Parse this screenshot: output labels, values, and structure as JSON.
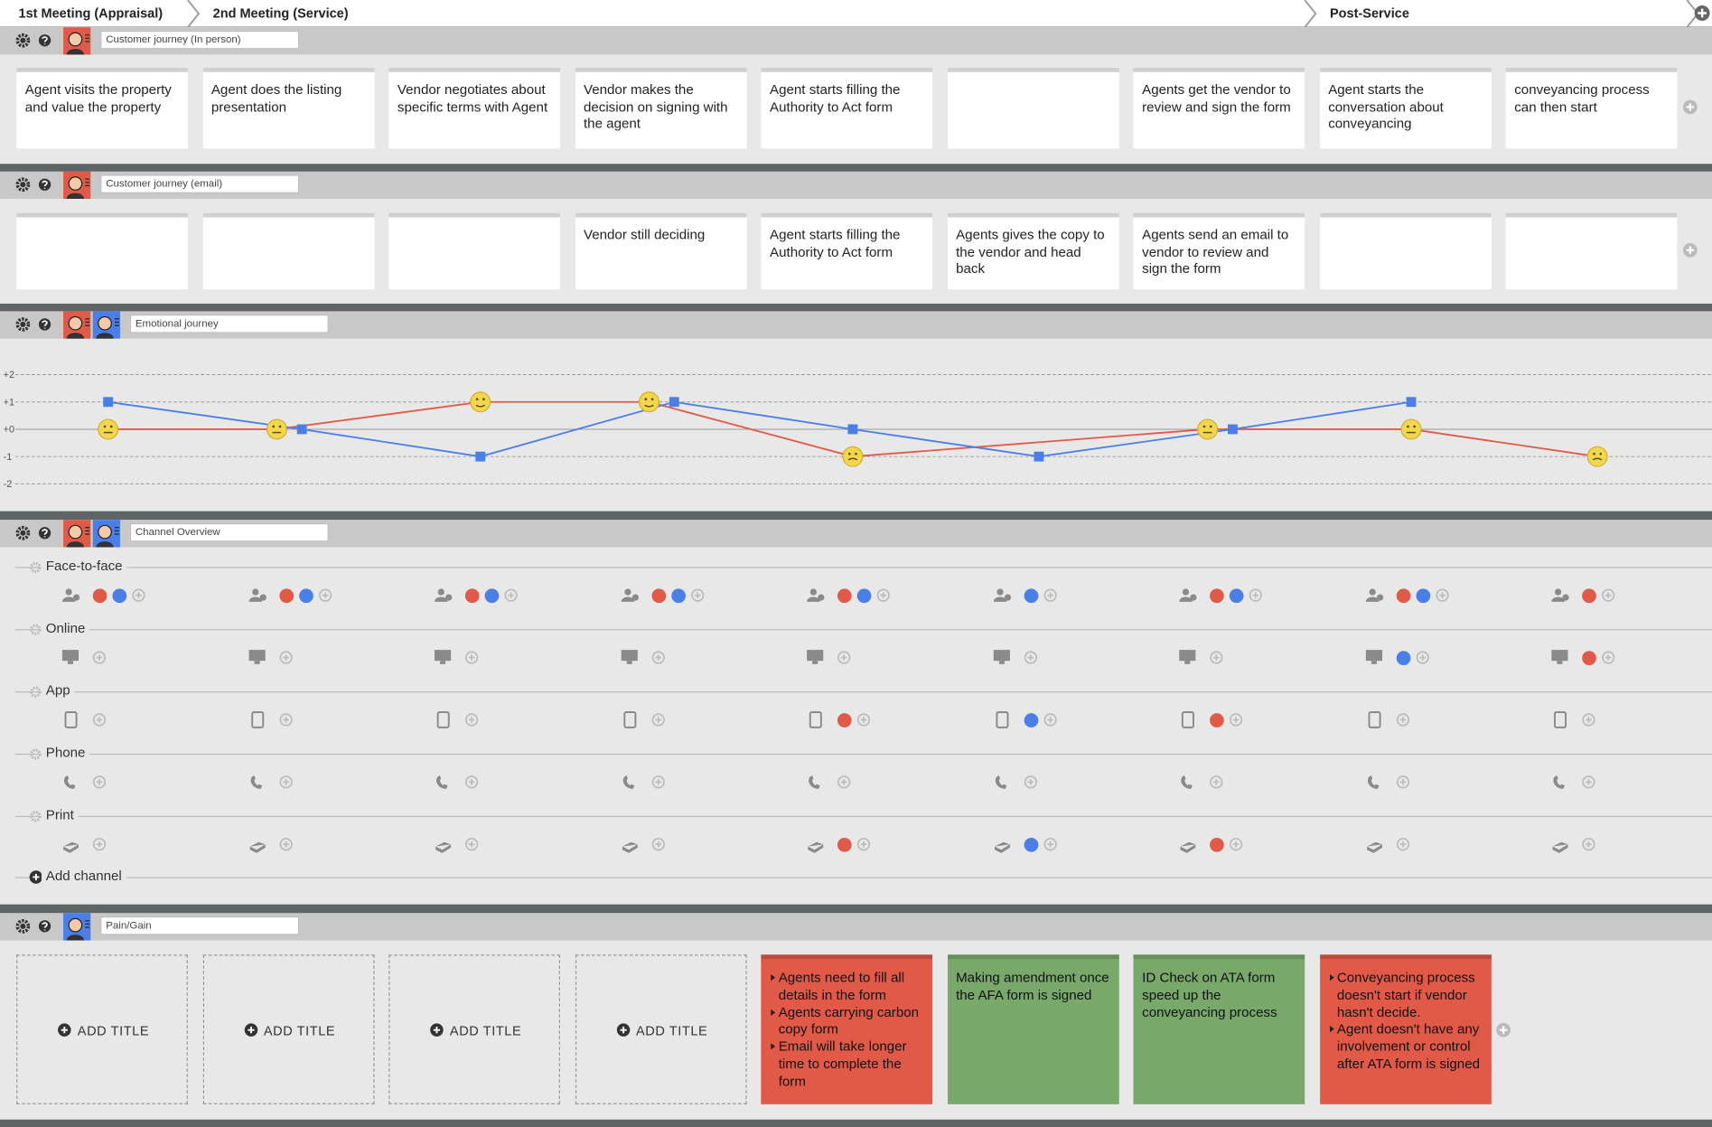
{
  "stages": [
    "1st Meeting (Appraisal)",
    "2nd Meeting (Service)",
    "Post-Service"
  ],
  "persona_colors": [
    "#e05a47",
    "#4a7fe8"
  ],
  "journey_in_person": {
    "title": "Customer journey (In person)",
    "personas": [
      0
    ],
    "cards": [
      "Agent visits the property and value the property",
      "Agent does the listing presentation",
      "Vendor negotiates about specific terms with Agent",
      "Vendor makes the decision on signing with the agent",
      "Agent starts filling the Authority to Act form",
      null,
      "Agents get the vendor to review and sign the form",
      "Agent starts the conversation about conveyancing",
      "conveyancing process can then start"
    ]
  },
  "journey_email": {
    "title": "Customer journey (email)",
    "personas": [
      0
    ],
    "cards": [
      null,
      null,
      null,
      "Vendor still deciding",
      "Agent starts filling the Authority to Act form",
      "Agents gives the copy to the vendor and head back",
      "Agents send an email to vendor to review and sign the form",
      null,
      null
    ]
  },
  "emotional_journey": {
    "title": "Emotional journey",
    "personas": [
      0,
      1
    ],
    "ylim": [
      -2,
      2
    ],
    "yticks": [
      {
        "value": 2,
        "label": "+2"
      },
      {
        "value": 1,
        "label": "+1"
      },
      {
        "value": 0,
        "label": "+0"
      },
      -1,
      -2
    ],
    "series": [
      {
        "color": "#e05a47",
        "marker": "face",
        "x": [
          0,
          1,
          2,
          3,
          4,
          6,
          7,
          8
        ],
        "values": [
          0,
          0,
          1,
          1,
          -1,
          0,
          0,
          -1
        ]
      },
      {
        "color": "#4a7fe8",
        "marker": "square",
        "x": [
          0,
          1,
          2,
          3,
          4,
          5,
          6,
          7
        ],
        "values": [
          1,
          0,
          -1,
          1,
          0,
          -1,
          0,
          1
        ]
      }
    ]
  },
  "channel_overview": {
    "title": "Channel Overview",
    "personas": [
      0,
      1
    ],
    "add_label": "Add channel",
    "channels": [
      {
        "name": "Face-to-face",
        "cells": [
          [
            0,
            1
          ],
          [
            0,
            1
          ],
          [
            0,
            1
          ],
          [
            0,
            1
          ],
          [
            0,
            1
          ],
          [
            1
          ],
          [
            0,
            1
          ],
          [
            0,
            1
          ],
          [
            0
          ]
        ]
      },
      {
        "name": "Online",
        "cells": [
          [],
          [],
          [],
          [],
          [],
          [],
          [],
          [
            1
          ],
          [
            0
          ]
        ]
      },
      {
        "name": "App",
        "cells": [
          [],
          [],
          [],
          [],
          [
            0
          ],
          [
            1
          ],
          [
            0
          ],
          [],
          []
        ]
      },
      {
        "name": "Phone",
        "cells": [
          [],
          [],
          [],
          [],
          [],
          [],
          [],
          [],
          []
        ]
      },
      {
        "name": "Print",
        "cells": [
          [],
          [],
          [],
          [],
          [
            0
          ],
          [
            1
          ],
          [
            0
          ],
          [],
          []
        ]
      }
    ]
  },
  "pain_gain": {
    "title": "Pain/Gain",
    "personas": [
      1
    ],
    "cards": [
      {
        "label": "ADD TITLE"
      },
      {
        "label": "ADD TITLE"
      },
      {
        "label": "ADD TITLE"
      },
      {
        "label": "ADD TITLE"
      },
      {
        "color": "#e05a47",
        "items": [
          "Agents need to fill all details in the form",
          "Agents carrying carbon copy form",
          "Email will take longer time to complete the form"
        ]
      },
      {
        "color": "#78a86a",
        "text": "Making amendment once the AFA form is signed"
      },
      {
        "color": "#78a86a",
        "text": "ID Check on ATA form speed up the conveyancing process"
      },
      {
        "color": "#e05a47",
        "items": [
          "Conveyancing process doesn't start if vendor hasn't decide.",
          "Agent doesn't have any involvement or control after ATA form is signed"
        ]
      }
    ]
  }
}
